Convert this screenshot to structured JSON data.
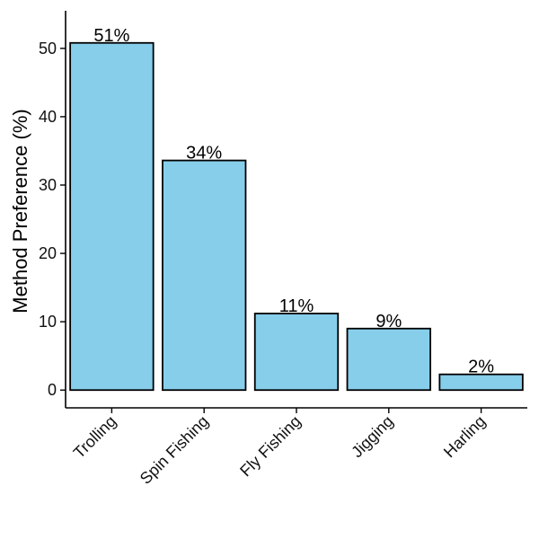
{
  "chart_data": {
    "type": "bar",
    "title": "",
    "xlabel": "",
    "ylabel": "Method Preference (%)",
    "categories": [
      "Trolling",
      "Spin Fishing",
      "Fly Fishing",
      "Jigging",
      "Harling"
    ],
    "values": [
      50.8,
      33.6,
      11.2,
      9.0,
      2.3
    ],
    "data_labels": [
      "51%",
      "34%",
      "11%",
      "9%",
      "2%"
    ],
    "ylim": [
      -2.6,
      55.5
    ],
    "yticks": [
      0,
      10,
      20,
      30,
      40,
      50
    ],
    "ytick_labels": [
      "0",
      "10",
      "20",
      "30",
      "40",
      "50"
    ],
    "bar_color": "#87CEEB",
    "grid": false,
    "legend": "none"
  }
}
